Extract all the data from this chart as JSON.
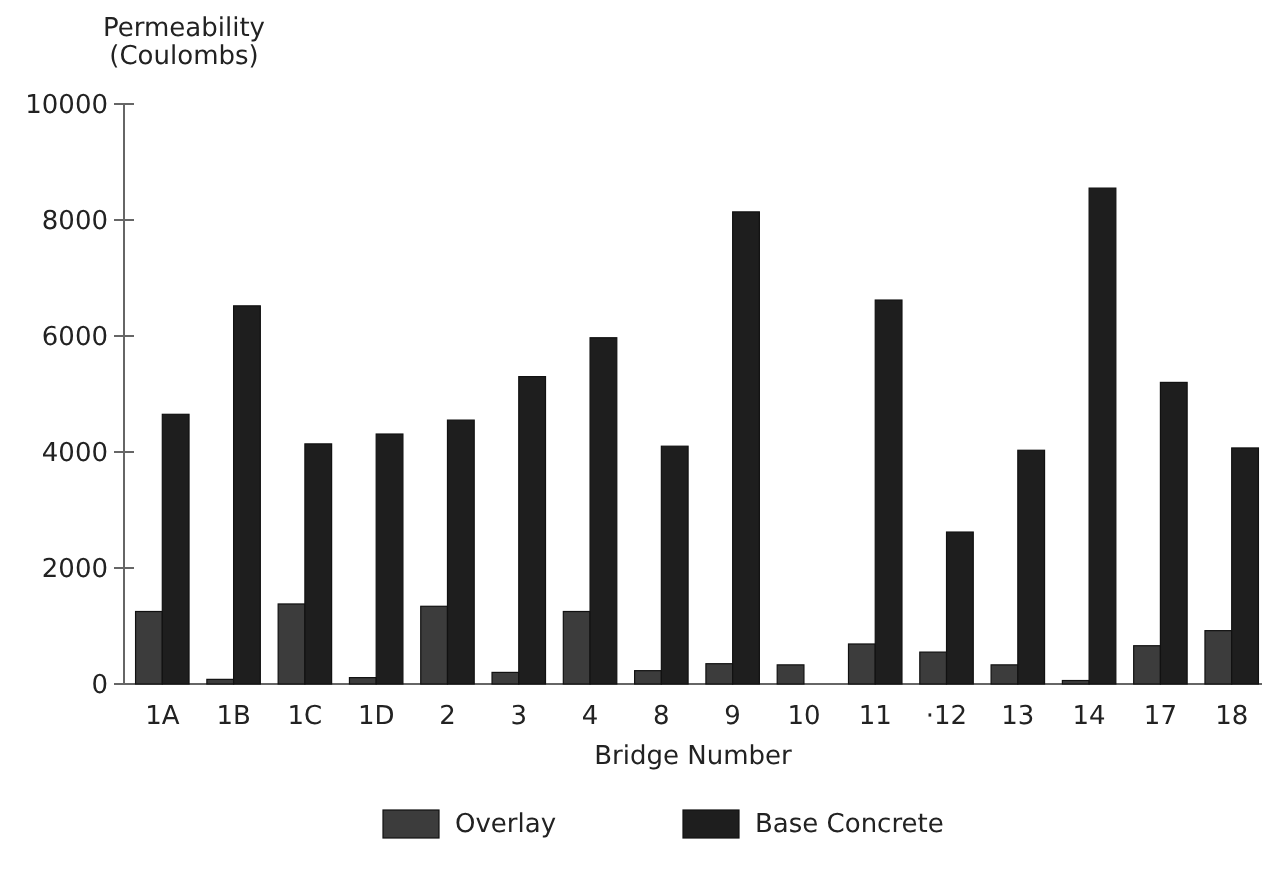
{
  "chart_data": {
    "type": "bar",
    "ylabel": "Permeability\n(Coulombs)",
    "xlabel": "Bridge Number",
    "categories": [
      "1A",
      "1B",
      "1C",
      "1D",
      "2",
      "3",
      "4",
      "8",
      "9",
      "10",
      "11",
      "·12",
      "13",
      "14",
      "17",
      "18"
    ],
    "series": [
      {
        "name": "Overlay",
        "color": "#3c3c3c",
        "values": [
          1250,
          80,
          1380,
          110,
          1340,
          200,
          1250,
          230,
          350,
          330,
          690,
          550,
          330,
          60,
          660,
          920
        ]
      },
      {
        "name": "Base Concrete",
        "color": "#1e1e1e",
        "values": [
          4650,
          6520,
          4140,
          4310,
          4550,
          5300,
          5970,
          4100,
          8140,
          null,
          6620,
          2620,
          4030,
          8550,
          5200,
          4070
        ]
      }
    ],
    "ylim": [
      0,
      10000
    ],
    "yticks": [
      0,
      2000,
      4000,
      6000,
      8000,
      10000
    ],
    "grid": false,
    "legend": "bottom"
  }
}
